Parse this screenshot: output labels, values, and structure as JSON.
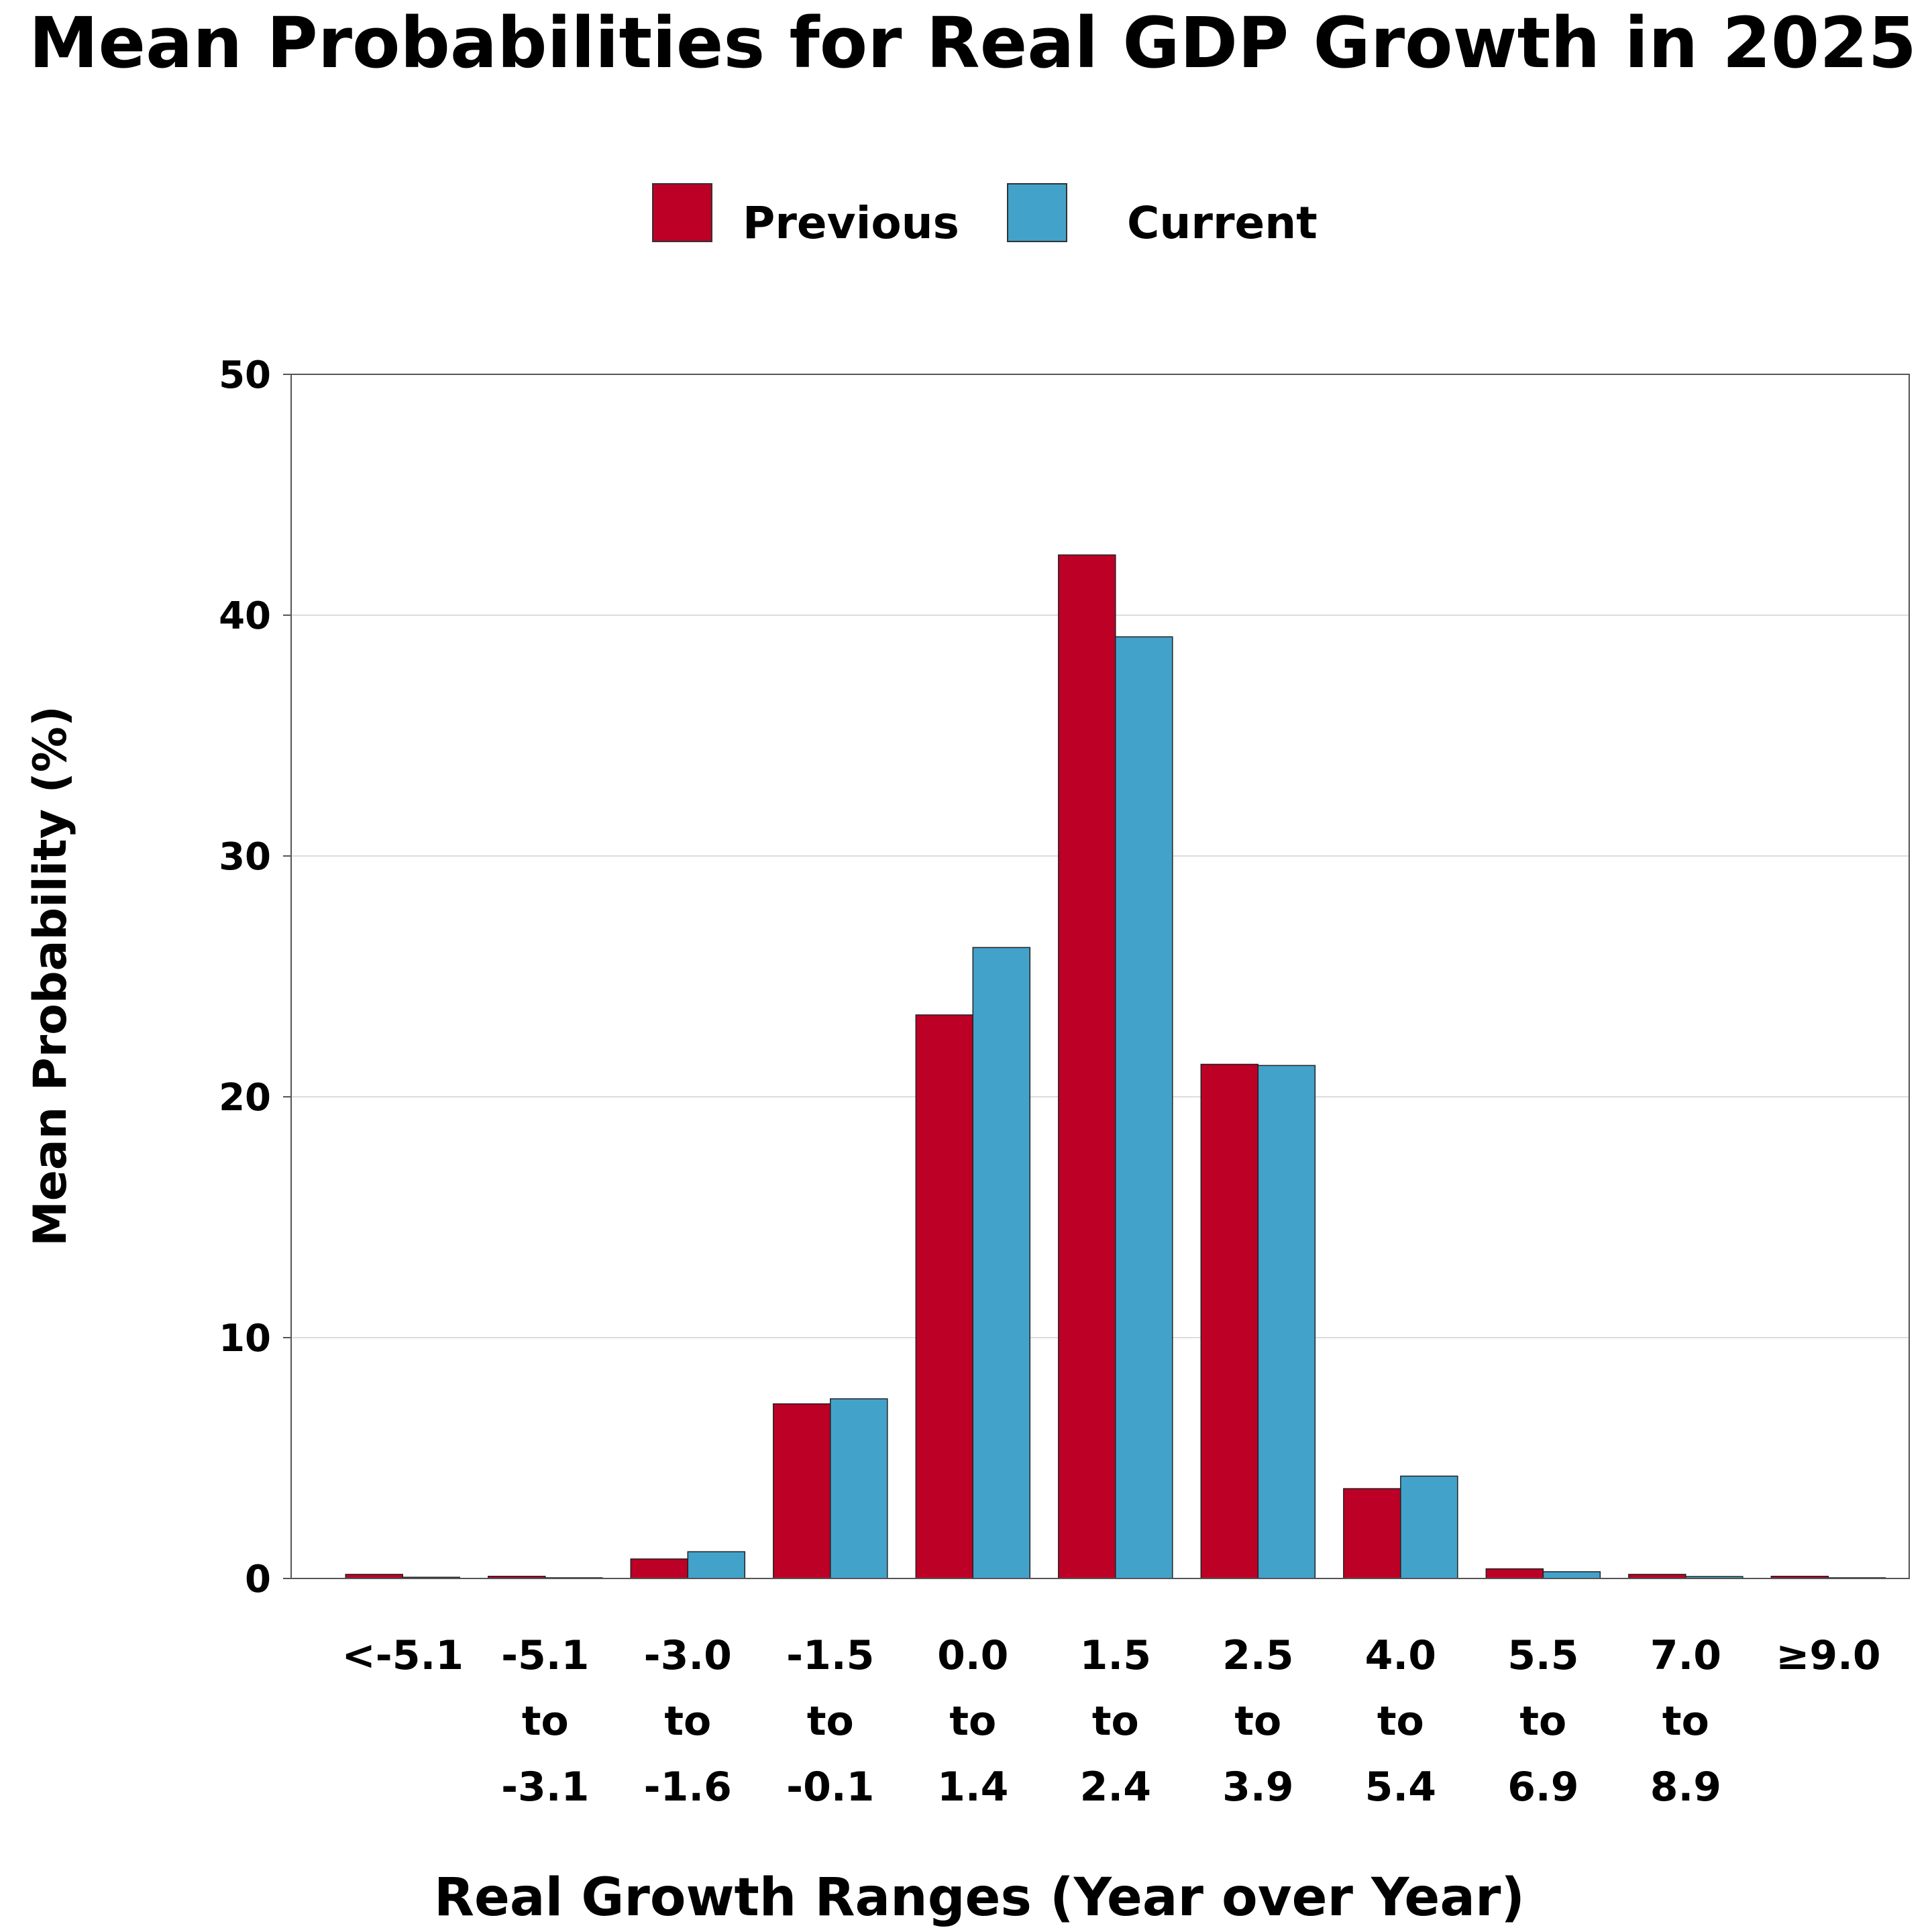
{
  "chart_data": {
    "type": "bar",
    "title": "Mean Probabilities for Real GDP Growth in 2025",
    "xlabel": "Real Growth Ranges (Year over Year)",
    "ylabel": "Mean Probability (%)",
    "ylim": [
      0,
      50
    ],
    "yticks": [
      0,
      10,
      20,
      30,
      40,
      50
    ],
    "grid": "horizontal",
    "legend_placement": "top-center",
    "categories": [
      [
        "<-5.1"
      ],
      [
        "-5.1",
        "to",
        "-3.1"
      ],
      [
        "-3.0",
        "to",
        "-1.6"
      ],
      [
        "-1.5",
        "to",
        "-0.1"
      ],
      [
        "0.0",
        "to",
        "1.4"
      ],
      [
        "1.5",
        "to",
        "2.4"
      ],
      [
        "2.5",
        "to",
        "3.9"
      ],
      [
        "4.0",
        "to",
        "5.4"
      ],
      [
        "5.5",
        "to",
        "6.9"
      ],
      [
        "7.0",
        "to",
        "8.9"
      ],
      [
        "≥9.0"
      ]
    ],
    "series": [
      {
        "name": "Previous",
        "color": "#bd0026",
        "values": [
          0.17,
          0.09,
          0.81,
          7.25,
          23.4,
          42.5,
          21.35,
          3.73,
          0.4,
          0.17,
          0.09
        ]
      },
      {
        "name": "Current",
        "color": "#43a2ca",
        "values": [
          0.05,
          0.03,
          1.11,
          7.46,
          26.2,
          39.1,
          21.3,
          4.25,
          0.28,
          0.08,
          0.03
        ]
      }
    ]
  }
}
